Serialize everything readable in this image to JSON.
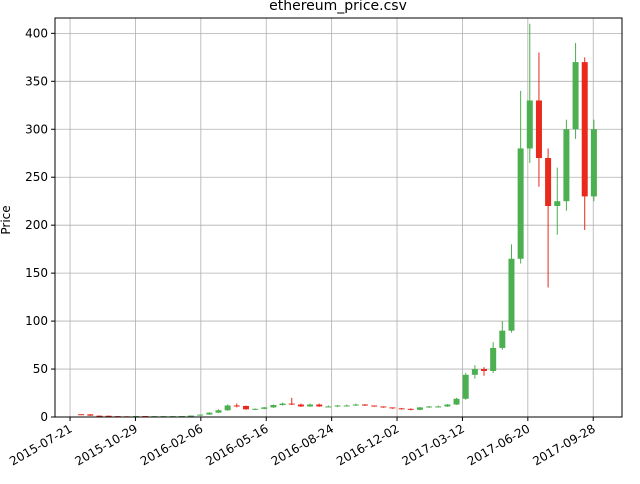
{
  "chart_data": {
    "type": "candlestick",
    "title": "ethereum_price.csv",
    "y_label": "Price",
    "up_color": "#4caf50",
    "down_color": "#e8291c",
    "grid": true,
    "xlim": [
      "2015-06-28",
      "2017-11-11"
    ],
    "xticks": [
      "2015-07-21",
      "2015-10-29",
      "2016-02-06",
      "2016-05-16",
      "2016-08-24",
      "2016-12-02",
      "2017-03-12",
      "2017-06-20",
      "2017-09-28"
    ],
    "ylim": [
      0,
      416
    ],
    "yticks": [
      0,
      50,
      100,
      150,
      200,
      250,
      300,
      350,
      400
    ],
    "x": [
      "2015-08-07",
      "2015-08-21",
      "2015-09-04",
      "2015-09-18",
      "2015-10-02",
      "2015-10-16",
      "2015-10-30",
      "2015-11-13",
      "2015-11-27",
      "2015-12-11",
      "2015-12-25",
      "2016-01-08",
      "2016-01-22",
      "2016-02-05",
      "2016-02-19",
      "2016-03-04",
      "2016-03-18",
      "2016-04-01",
      "2016-04-15",
      "2016-04-29",
      "2016-05-13",
      "2016-05-27",
      "2016-06-10",
      "2016-06-24",
      "2016-07-08",
      "2016-07-22",
      "2016-08-05",
      "2016-08-19",
      "2016-09-02",
      "2016-09-16",
      "2016-09-30",
      "2016-10-14",
      "2016-10-28",
      "2016-11-11",
      "2016-11-25",
      "2016-12-09",
      "2016-12-23",
      "2017-01-06",
      "2017-01-20",
      "2017-02-03",
      "2017-02-17",
      "2017-03-03",
      "2017-03-17",
      "2017-03-31",
      "2017-04-14",
      "2017-04-28",
      "2017-05-12",
      "2017-05-26",
      "2017-06-09",
      "2017-06-23",
      "2017-07-07",
      "2017-07-21",
      "2017-08-04",
      "2017-08-18",
      "2017-09-01",
      "2017-09-15",
      "2017-09-29"
    ],
    "open": [
      2.9,
      2.8,
      1.4,
      1.3,
      0.9,
      0.7,
      0.5,
      1.0,
      0.9,
      0.9,
      0.9,
      0.9,
      1.0,
      1.5,
      2.5,
      4.5,
      7,
      12,
      11.5,
      8,
      8.5,
      10,
      12.5,
      14,
      13,
      11,
      13,
      11,
      11,
      12,
      12,
      13,
      12,
      11,
      10,
      9,
      8.5,
      7.5,
      10,
      11,
      11,
      13,
      19,
      44,
      50,
      48,
      72,
      90,
      165,
      280,
      330,
      270,
      220,
      225,
      300,
      370,
      230
    ],
    "high": [
      3.0,
      2.9,
      1.6,
      1.4,
      1.0,
      0.8,
      1.1,
      1.1,
      1.0,
      1.0,
      1.0,
      1.1,
      1.6,
      2.7,
      5.0,
      8,
      13,
      14,
      12,
      9,
      10.5,
      13,
      15,
      20,
      14,
      14,
      14,
      12,
      12.5,
      13,
      14,
      13.5,
      12,
      11,
      10,
      9.5,
      9,
      10.5,
      11.5,
      12,
      13.5,
      20,
      46,
      54,
      52,
      78,
      100,
      180,
      340,
      410,
      380,
      280,
      260,
      310,
      390,
      375,
      310
    ],
    "low": [
      2.7,
      1.3,
      1.2,
      0.8,
      0.6,
      0.4,
      0.4,
      0.8,
      0.8,
      0.8,
      0.8,
      0.8,
      0.9,
      1.4,
      2.3,
      4.2,
      6.5,
      10,
      7.5,
      7.5,
      8,
      9.5,
      12,
      12.5,
      10.5,
      10.5,
      10.5,
      10,
      10.5,
      11.5,
      11.5,
      11.5,
      10.5,
      9.5,
      8.5,
      8,
      7,
      7,
      9.5,
      10,
      10.5,
      12.5,
      18,
      40,
      43,
      46,
      70,
      88,
      160,
      265,
      240,
      135,
      190,
      215,
      290,
      195,
      225
    ],
    "close": [
      2.8,
      1.4,
      1.3,
      0.9,
      0.7,
      0.5,
      1.0,
      0.9,
      0.9,
      0.9,
      0.9,
      1.0,
      1.5,
      2.5,
      4.5,
      7,
      12,
      11.5,
      8,
      8.5,
      10,
      12.5,
      14,
      13,
      11,
      13,
      11,
      11,
      12,
      12,
      13,
      12,
      11,
      10,
      9,
      8.5,
      7.5,
      10,
      11,
      11,
      13,
      19,
      44,
      50,
      48,
      72,
      90,
      165,
      280,
      330,
      270,
      220,
      225,
      300,
      370,
      230,
      300
    ]
  }
}
